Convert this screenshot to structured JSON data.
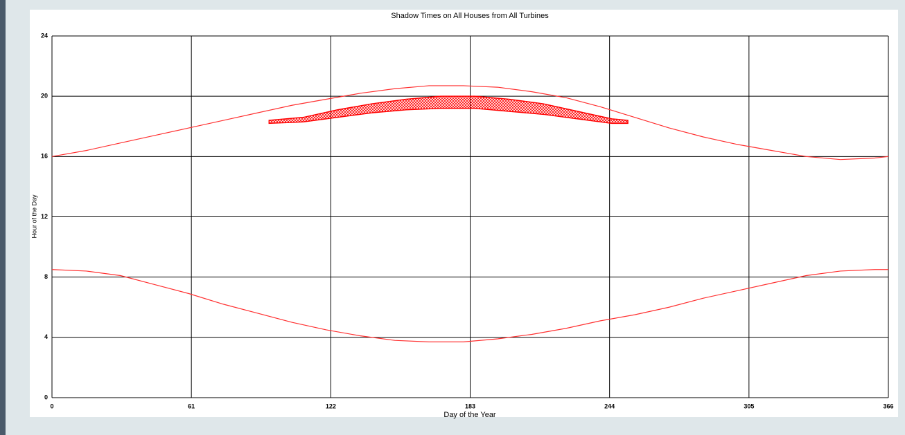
{
  "chart_data": {
    "type": "line",
    "title": "Shadow Times on All Houses from All Turbines",
    "xlabel": "Day of the Year",
    "ylabel": "Hour of the Day",
    "x": [
      0,
      15,
      30,
      45,
      60,
      75,
      90,
      105,
      120,
      135,
      150,
      165,
      180,
      195,
      210,
      225,
      240,
      255,
      270,
      285,
      300,
      315,
      330,
      345,
      360,
      366
    ],
    "series": [
      {
        "color": "#ff3030",
        "values": [
          16.0,
          16.4,
          16.9,
          17.4,
          17.9,
          18.4,
          18.9,
          19.4,
          19.8,
          20.2,
          20.5,
          20.7,
          20.7,
          20.6,
          20.3,
          19.9,
          19.3,
          18.6,
          17.9,
          17.3,
          16.8,
          16.4,
          16.0,
          15.8,
          15.9,
          16.0
        ]
      },
      {
        "color": "#ff3030",
        "values": [
          8.5,
          8.4,
          8.1,
          7.5,
          6.9,
          6.2,
          5.6,
          5.0,
          4.5,
          4.1,
          3.8,
          3.7,
          3.7,
          3.9,
          4.2,
          4.6,
          5.1,
          5.5,
          6.0,
          6.6,
          7.1,
          7.6,
          8.1,
          8.4,
          8.5,
          8.5
        ]
      }
    ],
    "band": {
      "color": "#ff0000",
      "x": [
        95,
        110,
        125,
        140,
        155,
        170,
        185,
        200,
        215,
        230,
        245,
        252
      ],
      "low": [
        18.2,
        18.3,
        18.6,
        18.9,
        19.1,
        19.2,
        19.2,
        19.0,
        18.8,
        18.5,
        18.2,
        18.2
      ],
      "high": [
        18.4,
        18.6,
        19.1,
        19.5,
        19.8,
        20.0,
        20.0,
        19.8,
        19.5,
        19.0,
        18.5,
        18.4
      ]
    },
    "xlim": [
      0,
      366
    ],
    "xticks": [
      0,
      61,
      122,
      183,
      244,
      305,
      366
    ],
    "ylim": [
      0,
      24
    ],
    "yticks": [
      0,
      4,
      8,
      12,
      16,
      20,
      24
    ],
    "grid": true
  }
}
